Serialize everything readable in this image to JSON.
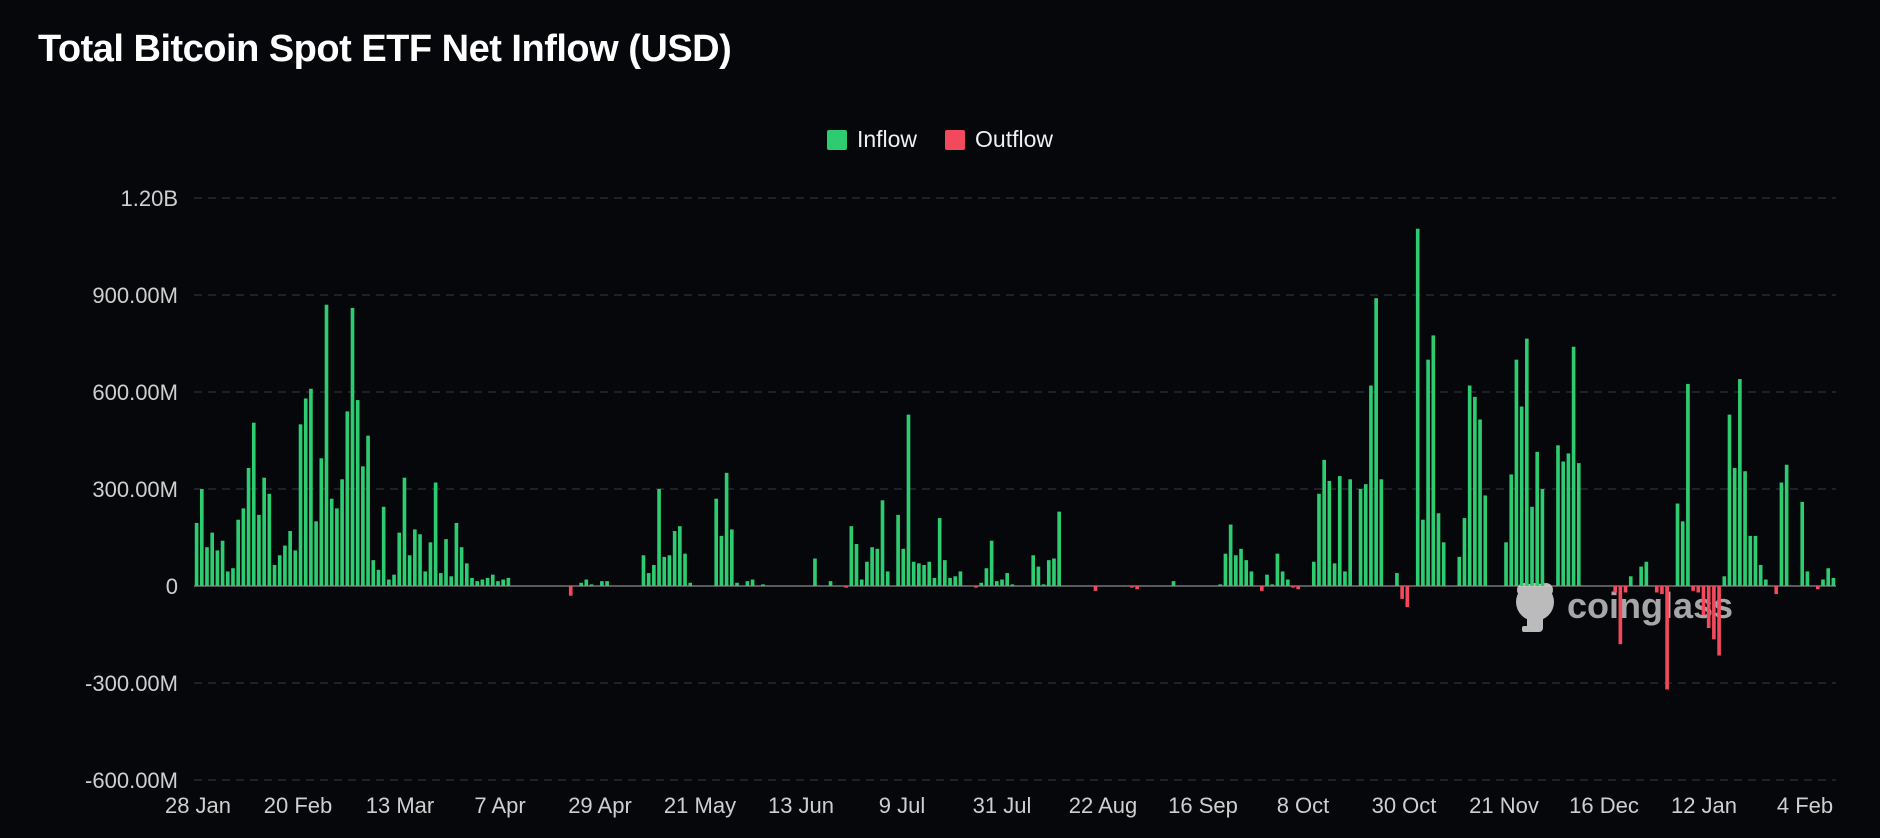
{
  "chart_data": {
    "type": "bar",
    "title": "Total Bitcoin Spot ETF Net Inflow (USD)",
    "legend": [
      {
        "name": "Inflow",
        "color": "#2ecc71"
      },
      {
        "name": "Outflow",
        "color": "#f2495c"
      }
    ],
    "legend_placement": "top-center",
    "watermark": "coinglass",
    "grid": true,
    "ylim": [
      -600000000,
      1200000000
    ],
    "y_ticks": [
      {
        "value": 1200000000,
        "label": "1.20B"
      },
      {
        "value": 900000000,
        "label": "900.00M"
      },
      {
        "value": 600000000,
        "label": "600.00M"
      },
      {
        "value": 300000000,
        "label": "300.00M"
      },
      {
        "value": 0,
        "label": "0"
      },
      {
        "value": -300000000,
        "label": "-300.00M"
      },
      {
        "value": -600000000,
        "label": "-600.00M"
      }
    ],
    "x_ticks": [
      "28 Jan",
      "20 Feb",
      "13 Mar",
      "7 Apr",
      "29 Apr",
      "21 May",
      "13 Jun",
      "9 Jul",
      "31 Jul",
      "22 Aug",
      "16 Sep",
      "8 Oct",
      "30 Oct",
      "21 Nov",
      "16 Dec",
      "12 Jan",
      "4 Feb"
    ],
    "units": "USD",
    "values": [
      195000000,
      300000000,
      120000000,
      165000000,
      110000000,
      140000000,
      45000000,
      55000000,
      205000000,
      240000000,
      365000000,
      505000000,
      220000000,
      335000000,
      285000000,
      65000000,
      95000000,
      125000000,
      170000000,
      110000000,
      500000000,
      580000000,
      610000000,
      200000000,
      395000000,
      870000000,
      270000000,
      240000000,
      330000000,
      540000000,
      860000000,
      575000000,
      370000000,
      465000000,
      80000000,
      50000000,
      245000000,
      20000000,
      35000000,
      165000000,
      335000000,
      95000000,
      175000000,
      160000000,
      45000000,
      135000000,
      320000000,
      40000000,
      145000000,
      30000000,
      195000000,
      120000000,
      70000000,
      25000000,
      15000000,
      20000000,
      25000000,
      35000000,
      15000000,
      20000000,
      25000000,
      0,
      0,
      0,
      0,
      0,
      0,
      0,
      0,
      0,
      0,
      0,
      -30000000,
      0,
      10000000,
      20000000,
      5000000,
      0,
      15000000,
      15000000,
      0,
      0,
      0,
      0,
      0,
      0,
      95000000,
      40000000,
      65000000,
      300000000,
      90000000,
      95000000,
      170000000,
      185000000,
      100000000,
      10000000,
      0,
      0,
      0,
      0,
      270000000,
      155000000,
      350000000,
      175000000,
      10000000,
      0,
      15000000,
      20000000,
      0,
      5000000,
      0,
      0,
      0,
      0,
      0,
      0,
      0,
      0,
      0,
      85000000,
      0,
      0,
      15000000,
      0,
      0,
      -5000000,
      185000000,
      130000000,
      20000000,
      75000000,
      120000000,
      115000000,
      265000000,
      45000000,
      0,
      220000000,
      115000000,
      530000000,
      75000000,
      70000000,
      65000000,
      75000000,
      25000000,
      210000000,
      80000000,
      25000000,
      30000000,
      45000000,
      0,
      0,
      -5000000,
      10000000,
      55000000,
      140000000,
      15000000,
      20000000,
      40000000,
      5000000,
      0,
      0,
      0,
      95000000,
      60000000,
      5000000,
      80000000,
      85000000,
      230000000,
      0,
      0,
      0,
      0,
      0,
      0,
      -15000000,
      0,
      0,
      0,
      0,
      0,
      0,
      -5000000,
      -10000000,
      0,
      0,
      0,
      0,
      0,
      0,
      15000000,
      0,
      0,
      0,
      0,
      0,
      0,
      0,
      0,
      5000000,
      100000000,
      190000000,
      95000000,
      115000000,
      80000000,
      45000000,
      0,
      -15000000,
      35000000,
      5000000,
      100000000,
      45000000,
      20000000,
      -5000000,
      -10000000,
      0,
      0,
      75000000,
      285000000,
      390000000,
      325000000,
      70000000,
      340000000,
      45000000,
      330000000,
      0,
      300000000,
      315000000,
      620000000,
      890000000,
      330000000,
      0,
      0,
      40000000,
      -40000000,
      -65000000,
      0,
      1105000000,
      205000000,
      700000000,
      775000000,
      225000000,
      135000000,
      0,
      0,
      90000000,
      210000000,
      620000000,
      585000000,
      515000000,
      280000000,
      0,
      0,
      0,
      135000000,
      345000000,
      700000000,
      555000000,
      765000000,
      245000000,
      415000000,
      300000000,
      0,
      0,
      435000000,
      385000000,
      410000000,
      740000000,
      380000000,
      0,
      0,
      0,
      0,
      0,
      0,
      -20000000,
      -180000000,
      -20000000,
      30000000,
      0,
      60000000,
      75000000,
      0,
      -20000000,
      -25000000,
      -320000000,
      0,
      255000000,
      200000000,
      625000000,
      -15000000,
      -20000000,
      -90000000,
      -130000000,
      -165000000,
      -215000000,
      30000000,
      530000000,
      365000000,
      640000000,
      355000000,
      155000000,
      155000000,
      65000000,
      20000000,
      0,
      -25000000,
      320000000,
      375000000,
      0,
      0,
      260000000,
      45000000,
      0,
      -10000000,
      20000000,
      55000000,
      25000000
    ]
  }
}
